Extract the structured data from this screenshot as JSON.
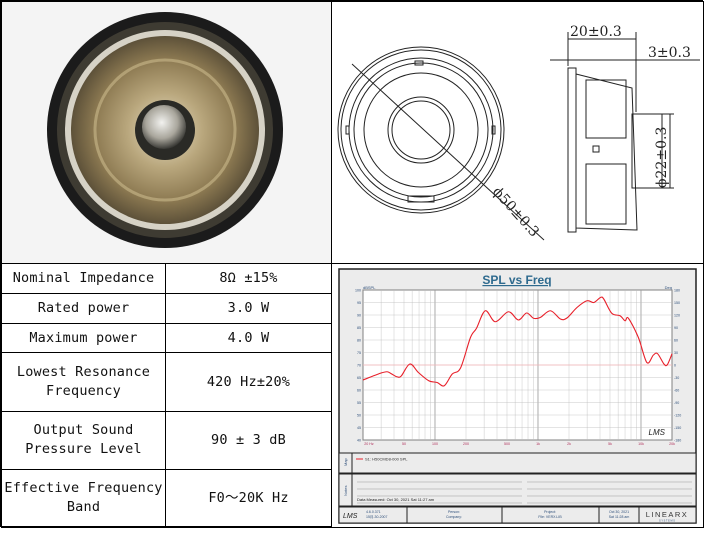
{
  "drawing": {
    "dim_depth": "20±0.3",
    "dim_front": "3±0.3",
    "dim_magnet": "ϕ22±0.3",
    "dim_diameter": "ϕ50±0.3"
  },
  "specs": [
    {
      "label": "Nominal Impedance",
      "value": "8Ω ±15%"
    },
    {
      "label": "Rated power",
      "value": "3.0 W"
    },
    {
      "label": "Maximum power",
      "value": "4.0 W"
    },
    {
      "label": "Lowest Resonance Frequency",
      "value": "420 Hz±20%"
    },
    {
      "label": "Output Sound Pressure Level",
      "value": "90 ± 3 dB"
    },
    {
      "label": "Effective Frequency Band",
      "value": "F0～20K Hz"
    }
  ],
  "chart_data": {
    "type": "line",
    "title": "SPL vs Freq",
    "ylabel": "dBSPL",
    "y2label": "Deg",
    "xscale": "log",
    "xlim": [
      20,
      20000
    ],
    "ylim": [
      40,
      100
    ],
    "y2lim": [
      -180,
      180
    ],
    "grid": true,
    "xticks": [
      "20 Hz",
      "50",
      "100",
      "200",
      "500",
      "1k",
      "2k",
      "5k",
      "10k",
      "20k"
    ],
    "yticks": [
      "100",
      "95",
      "90",
      "85",
      "80",
      "75",
      "70",
      "65",
      "60",
      "55",
      "50",
      "45",
      "40"
    ],
    "y2ticks": [
      "180",
      "150",
      "120",
      "90",
      "60",
      "30",
      "0",
      "-30",
      "-60",
      "-90",
      "-120",
      "-150",
      "-180"
    ],
    "series": [
      {
        "name": "S1: H50CMD8-000 SPL",
        "color": "#e8202a",
        "x": [
          20,
          29.5,
          34.3,
          38,
          42.7,
          47,
          57,
          69,
          87,
          105,
          123,
          147,
          177,
          221,
          253,
          308,
          385,
          516,
          645,
          774,
          906,
          1050,
          1320,
          1650,
          1910,
          2390,
          2990,
          3480,
          4040,
          4350,
          5200,
          6260,
          7000,
          7540,
          9430,
          11400,
          13200,
          14500,
          16700,
          18000,
          20000
        ],
        "y": [
          64,
          66.7,
          67.3,
          66.4,
          65.3,
          65.6,
          70.4,
          67,
          63.7,
          63,
          61.7,
          66.4,
          68.8,
          81,
          84.7,
          91.7,
          87.3,
          91.3,
          88,
          90.8,
          88.7,
          89,
          91.7,
          88.4,
          88.8,
          93,
          95.7,
          95,
          97,
          96.4,
          90.7,
          89.7,
          87.7,
          88.7,
          81,
          71,
          74,
          74.5,
          70.4,
          70.1,
          74.5
        ]
      }
    ],
    "reference_line_db": 70,
    "legend_title": "Map",
    "notes_title": "Notes",
    "notes_text": "Data Measured: Oct 30, 2021  Sat 11:27 am",
    "footer": {
      "logo": "LMS",
      "version": "4.6.0.371",
      "version_date": "15月-30-2007",
      "person": "Person:",
      "company": "Company:",
      "project": "Project:",
      "file": "File: VERX.LIB",
      "date": "Oct 30, 2021",
      "time": "Sat 11:28 am",
      "brand": "LINEARX",
      "brand_sub": "S Y S T E M S"
    },
    "watermark": "LMS"
  }
}
